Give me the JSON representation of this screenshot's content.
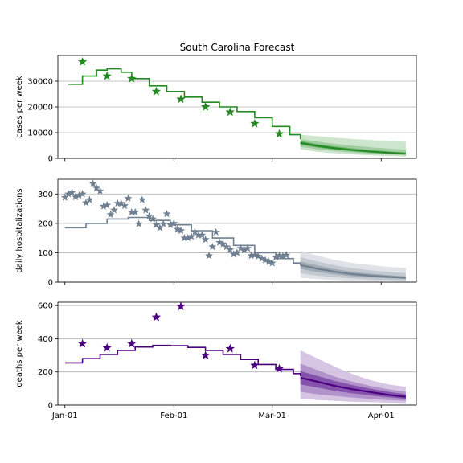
{
  "figure": {
    "title": "South Carolina Forecast",
    "date_ticks": [
      "Jan-01",
      "Feb-01",
      "Mar-01",
      "Apr-01"
    ]
  },
  "chart_data": [
    {
      "type": "line",
      "ylabel": "cases per week",
      "color": "#228b22",
      "ylim": [
        0,
        40000
      ],
      "yticks": [
        0,
        10000,
        20000,
        30000
      ],
      "ytick_labels": [
        "0",
        "10000",
        "20000",
        "30000"
      ],
      "xlim": [
        "2020-12-30",
        "2021-04-11"
      ],
      "grid": true,
      "observed": {
        "x": [
          "2021-01-06",
          "2021-01-13",
          "2021-01-20",
          "2021-01-27",
          "2021-02-03",
          "2021-02-10",
          "2021-02-17",
          "2021-02-24",
          "2021-03-03"
        ],
        "y": [
          37500,
          32000,
          31000,
          26000,
          23000,
          20000,
          18000,
          13500,
          9500
        ]
      },
      "fit": {
        "x": [
          "2021-01-02",
          "2021-01-06",
          "2021-01-10",
          "2021-01-13",
          "2021-01-17",
          "2021-01-20",
          "2021-01-25",
          "2021-01-30",
          "2021-02-04",
          "2021-02-09",
          "2021-02-14",
          "2021-02-19",
          "2021-02-24",
          "2021-03-01",
          "2021-03-06",
          "2021-03-09"
        ],
        "y": [
          28800,
          32000,
          34300,
          34800,
          33500,
          31000,
          28200,
          26000,
          23800,
          21800,
          20000,
          18200,
          15800,
          12400,
          9200,
          7500
        ]
      },
      "forecast": {
        "x": [
          "2021-03-09",
          "2021-03-14",
          "2021-03-19",
          "2021-03-24",
          "2021-03-29",
          "2021-04-03",
          "2021-04-08"
        ],
        "median": [
          6000,
          4800,
          3900,
          3200,
          2600,
          2200,
          1800
        ],
        "bands": [
          {
            "lo": [
              3500,
              2500,
              1900,
              1500,
              1200,
              900,
              700
            ],
            "hi": [
              9200,
              8600,
              8000,
              7500,
              7100,
              6800,
              6500
            ]
          },
          {
            "lo": [
              4500,
              3500,
              2800,
              2200,
              1800,
              1500,
              1200
            ],
            "hi": [
              7500,
              6500,
              5600,
              4900,
              4300,
              3800,
              3400
            ]
          },
          {
            "lo": [
              5300,
              4200,
              3400,
              2800,
              2300,
              1900,
              1600
            ],
            "hi": [
              6800,
              5500,
              4600,
              3900,
              3200,
              2700,
              2300
            ]
          }
        ]
      }
    },
    {
      "type": "line",
      "ylabel": "daily hospitalizations",
      "color": "#708090",
      "ylim": [
        0,
        350
      ],
      "yticks": [
        0,
        100,
        200,
        300
      ],
      "ytick_labels": [
        "0",
        "100",
        "200",
        "300"
      ],
      "xlim": [
        "2020-12-30",
        "2021-04-11"
      ],
      "grid": true,
      "observed": {
        "x": [
          "2021-01-01",
          "2021-01-02",
          "2021-01-03",
          "2021-01-04",
          "2021-01-05",
          "2021-01-06",
          "2021-01-07",
          "2021-01-08",
          "2021-01-09",
          "2021-01-10",
          "2021-01-11",
          "2021-01-12",
          "2021-01-13",
          "2021-01-14",
          "2021-01-15",
          "2021-01-16",
          "2021-01-17",
          "2021-01-18",
          "2021-01-19",
          "2021-01-20",
          "2021-01-21",
          "2021-01-22",
          "2021-01-23",
          "2021-01-24",
          "2021-01-25",
          "2021-01-26",
          "2021-01-27",
          "2021-01-28",
          "2021-01-29",
          "2021-01-30",
          "2021-01-31",
          "2021-02-01",
          "2021-02-02",
          "2021-02-03",
          "2021-02-04",
          "2021-02-05",
          "2021-02-06",
          "2021-02-07",
          "2021-02-08",
          "2021-02-09",
          "2021-02-10",
          "2021-02-11",
          "2021-02-12",
          "2021-02-13",
          "2021-02-14",
          "2021-02-15",
          "2021-02-16",
          "2021-02-17",
          "2021-02-18",
          "2021-02-19",
          "2021-02-20",
          "2021-02-21",
          "2021-02-22",
          "2021-02-23",
          "2021-02-24",
          "2021-02-25",
          "2021-02-26",
          "2021-02-27",
          "2021-02-28",
          "2021-03-01",
          "2021-03-02",
          "2021-03-03",
          "2021-03-04",
          "2021-03-05"
        ],
        "y": [
          288,
          300,
          305,
          290,
          295,
          300,
          270,
          280,
          335,
          320,
          310,
          258,
          262,
          230,
          245,
          268,
          268,
          260,
          285,
          238,
          238,
          198,
          280,
          245,
          225,
          215,
          195,
          185,
          198,
          232,
          195,
          200,
          180,
          175,
          150,
          150,
          155,
          170,
          160,
          160,
          145,
          90,
          120,
          170,
          135,
          130,
          120,
          110,
          95,
          100,
          115,
          110,
          115,
          90,
          92,
          88,
          80,
          75,
          70,
          65,
          85,
          90,
          88,
          92
        ],
        "marker_note": ""
      },
      "fit": {
        "x": [
          "2021-01-01",
          "2021-01-07",
          "2021-01-13",
          "2021-01-19",
          "2021-01-25",
          "2021-01-31",
          "2021-02-06",
          "2021-02-12",
          "2021-02-18",
          "2021-02-24",
          "2021-03-02",
          "2021-03-07",
          "2021-03-09"
        ],
        "y": [
          185,
          200,
          215,
          220,
          210,
          195,
          175,
          150,
          125,
          100,
          80,
          65,
          58
        ]
      },
      "forecast": {
        "x": [
          "2021-03-09",
          "2021-03-14",
          "2021-03-19",
          "2021-03-24",
          "2021-03-29",
          "2021-04-03",
          "2021-04-08"
        ],
        "median": [
          58,
          45,
          35,
          27,
          22,
          18,
          15
        ],
        "bands": [
          {
            "lo": [
              15,
              10,
              7,
              5,
              4,
              3,
              2
            ],
            "hi": [
              105,
              90,
              75,
              65,
              58,
              52,
              48
            ]
          },
          {
            "lo": [
              30,
              22,
              16,
              12,
              9,
              7,
              6
            ],
            "hi": [
              85,
              70,
              57,
              47,
              40,
              35,
              31
            ]
          },
          {
            "lo": [
              45,
              34,
              26,
              20,
              16,
              13,
              11
            ],
            "hi": [
              70,
              56,
              44,
              35,
              29,
              24,
              20
            ]
          }
        ]
      }
    },
    {
      "type": "line",
      "ylabel": "deaths per week",
      "color": "#4b0082",
      "ylim": [
        0,
        620
      ],
      "yticks": [
        0,
        200,
        400,
        600
      ],
      "ytick_labels": [
        "0",
        "200",
        "400",
        "600"
      ],
      "xlim": [
        "2020-12-30",
        "2021-04-11"
      ],
      "grid": true,
      "observed": {
        "x": [
          "2021-01-06",
          "2021-01-13",
          "2021-01-20",
          "2021-01-27",
          "2021-02-03",
          "2021-02-10",
          "2021-02-17",
          "2021-02-24",
          "2021-03-03"
        ],
        "y": [
          370,
          345,
          370,
          530,
          595,
          300,
          340,
          240,
          220
        ]
      },
      "fit": {
        "x": [
          "2021-01-01",
          "2021-01-06",
          "2021-01-11",
          "2021-01-16",
          "2021-01-21",
          "2021-01-26",
          "2021-01-31",
          "2021-02-05",
          "2021-02-10",
          "2021-02-15",
          "2021-02-20",
          "2021-02-25",
          "2021-03-02",
          "2021-03-07",
          "2021-03-09"
        ],
        "y": [
          255,
          280,
          305,
          330,
          350,
          360,
          358,
          348,
          330,
          305,
          275,
          245,
          215,
          190,
          175
        ]
      },
      "forecast": {
        "x": [
          "2021-03-09",
          "2021-03-14",
          "2021-03-19",
          "2021-03-24",
          "2021-03-29",
          "2021-04-03",
          "2021-04-08"
        ],
        "median": [
          165,
          140,
          115,
          95,
          78,
          62,
          50
        ],
        "bands": [
          {
            "lo": [
              40,
              30,
              25,
              20,
              18,
              15,
              12
            ],
            "hi": [
              330,
              280,
              230,
              185,
              150,
              125,
              110
            ]
          },
          {
            "lo": [
              80,
              65,
              55,
              45,
              38,
              30,
              25
            ],
            "hi": [
              250,
              210,
              170,
              140,
              115,
              95,
              80
            ]
          },
          {
            "lo": [
              125,
              105,
              85,
              70,
              58,
              47,
              38
            ],
            "hi": [
              205,
              175,
              145,
              120,
              98,
              80,
              65
            ]
          }
        ]
      }
    }
  ]
}
